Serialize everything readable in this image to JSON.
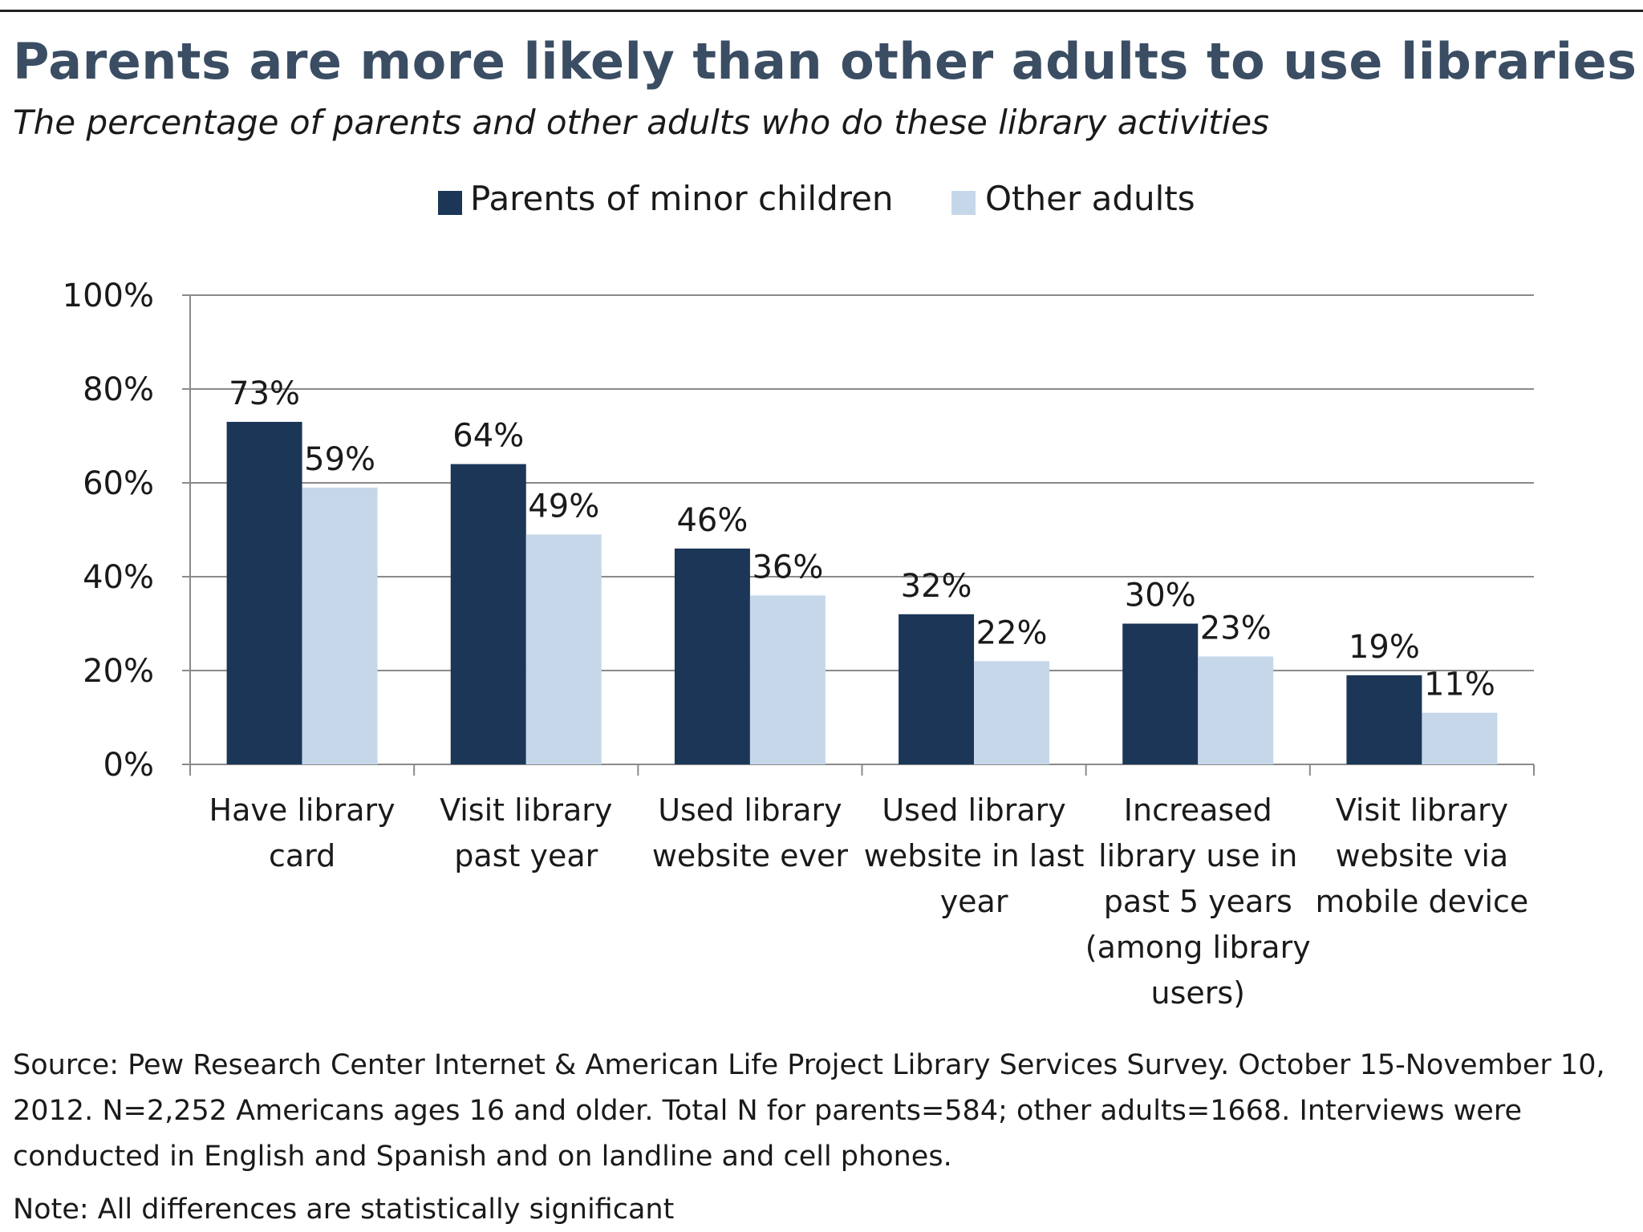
{
  "header": {
    "title": "Parents are more likely than other adults to use libraries",
    "subtitle": "The percentage of parents and other adults who do these library activities"
  },
  "chart_data": {
    "type": "bar",
    "categories": [
      [
        "Have library",
        "card"
      ],
      [
        "Visit library",
        "past year"
      ],
      [
        "Used library",
        "website ever"
      ],
      [
        "Used library",
        "website in last",
        "year"
      ],
      [
        "Increased",
        "library use in",
        "past 5 years",
        "(among library",
        "users)"
      ],
      [
        "Visit library",
        "website via",
        "mobile device"
      ]
    ],
    "series": [
      {
        "name": "Parents of minor children",
        "color": "#1b3657",
        "values": [
          73,
          64,
          46,
          32,
          30,
          19
        ]
      },
      {
        "name": "Other adults",
        "color": "#c6d7ea",
        "values": [
          59,
          49,
          36,
          22,
          23,
          11
        ]
      }
    ],
    "yticks": [
      "0%",
      "20%",
      "40%",
      "60%",
      "80%",
      "100%"
    ],
    "ylim": [
      0,
      100
    ],
    "value_suffix": "%",
    "legend_position": "top-center",
    "grid": true,
    "xlabel": "",
    "ylabel": ""
  },
  "footer": {
    "source": "Source: Pew Research Center Internet & American Life Project Library Services Survey. October 15-November 10, 2012. N=2,252 Americans ages 16 and older. Total N for parents=584; other adults=1668. Interviews were conducted in English and Spanish and on landline and cell phones.",
    "note": "Note: All differences are statistically significant"
  }
}
